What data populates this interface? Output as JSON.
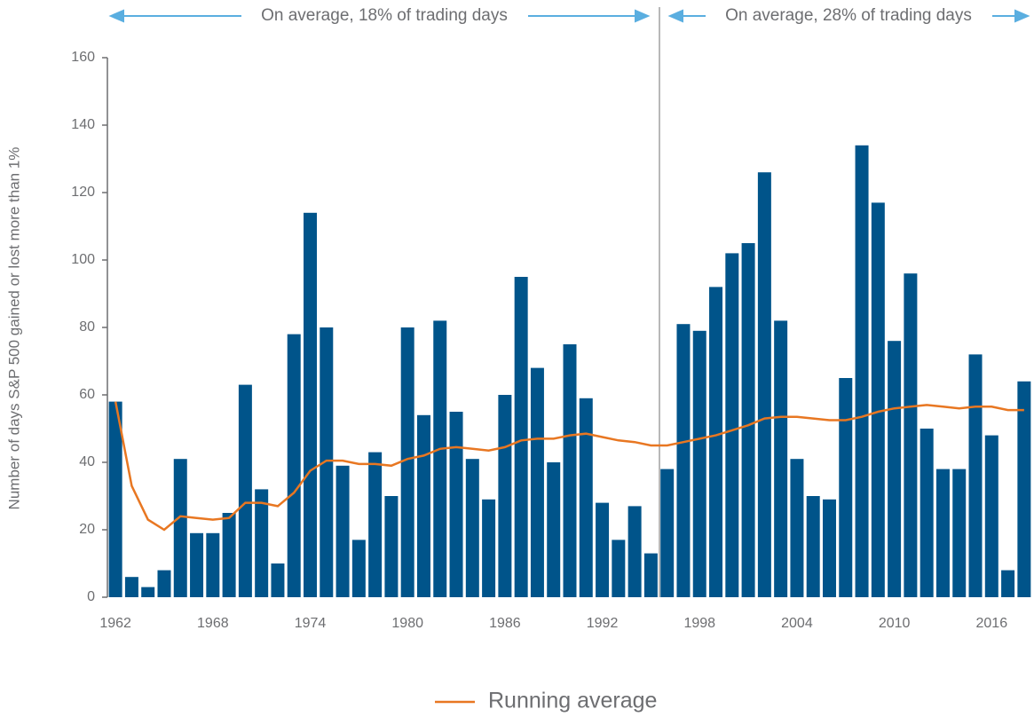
{
  "chart_data": {
    "type": "bar",
    "ylabel": "Number of days S&P 500 gained or lost more than 1%",
    "annotations": [
      "On average, 18% of trading days",
      "On average, 28% of trading days"
    ],
    "x": [
      1962,
      1963,
      1964,
      1965,
      1966,
      1967,
      1968,
      1969,
      1970,
      1971,
      1972,
      1973,
      1974,
      1975,
      1976,
      1977,
      1978,
      1979,
      1980,
      1981,
      1982,
      1983,
      1984,
      1985,
      1986,
      1987,
      1988,
      1989,
      1990,
      1991,
      1992,
      1993,
      1994,
      1995,
      1996,
      1997,
      1998,
      1999,
      2000,
      2001,
      2002,
      2003,
      2004,
      2005,
      2006,
      2007,
      2008,
      2009,
      2010,
      2011,
      2012,
      2013,
      2014,
      2015,
      2016,
      2017,
      2018
    ],
    "series": [
      {
        "color": "#00548a",
        "values": [
          58,
          6,
          3,
          8,
          41,
          19,
          19,
          25,
          63,
          32,
          10,
          78,
          114,
          80,
          39,
          17,
          43,
          30,
          80,
          54,
          82,
          55,
          41,
          29,
          60,
          95,
          68,
          40,
          75,
          59,
          28,
          17,
          27,
          13,
          38,
          81,
          79,
          92,
          102,
          105,
          126,
          82,
          41,
          30,
          29,
          65,
          134,
          117,
          76,
          96,
          50,
          38,
          38,
          72,
          48,
          8,
          64
        ]
      },
      {
        "name": "Running average",
        "type": "line",
        "color": "#e87722",
        "values": [
          58,
          33,
          23,
          20,
          24,
          23.5,
          23,
          23.5,
          28,
          28,
          27,
          31,
          37.5,
          40.5,
          40.5,
          39.5,
          39.5,
          39,
          41,
          42,
          44,
          44.5,
          44,
          43.5,
          44.5,
          46.5,
          47,
          47,
          48,
          48.5,
          47.5,
          46.5,
          46,
          45,
          45,
          46,
          47,
          48,
          49.5,
          51,
          53,
          53.5,
          53.5,
          53,
          52.5,
          52.5,
          53.5,
          55,
          56,
          56.5,
          57,
          56.5,
          56,
          56.5,
          56.5,
          55.5,
          55.5
        ]
      }
    ],
    "xlim": [
      1961.5,
      2018.5
    ],
    "xticks": [
      1962,
      1968,
      1974,
      1980,
      1986,
      1992,
      1998,
      2004,
      2010,
      2016
    ],
    "ylim": [
      0,
      160
    ],
    "yticks": [
      0,
      20,
      40,
      60,
      80,
      100,
      120,
      140,
      160
    ]
  }
}
